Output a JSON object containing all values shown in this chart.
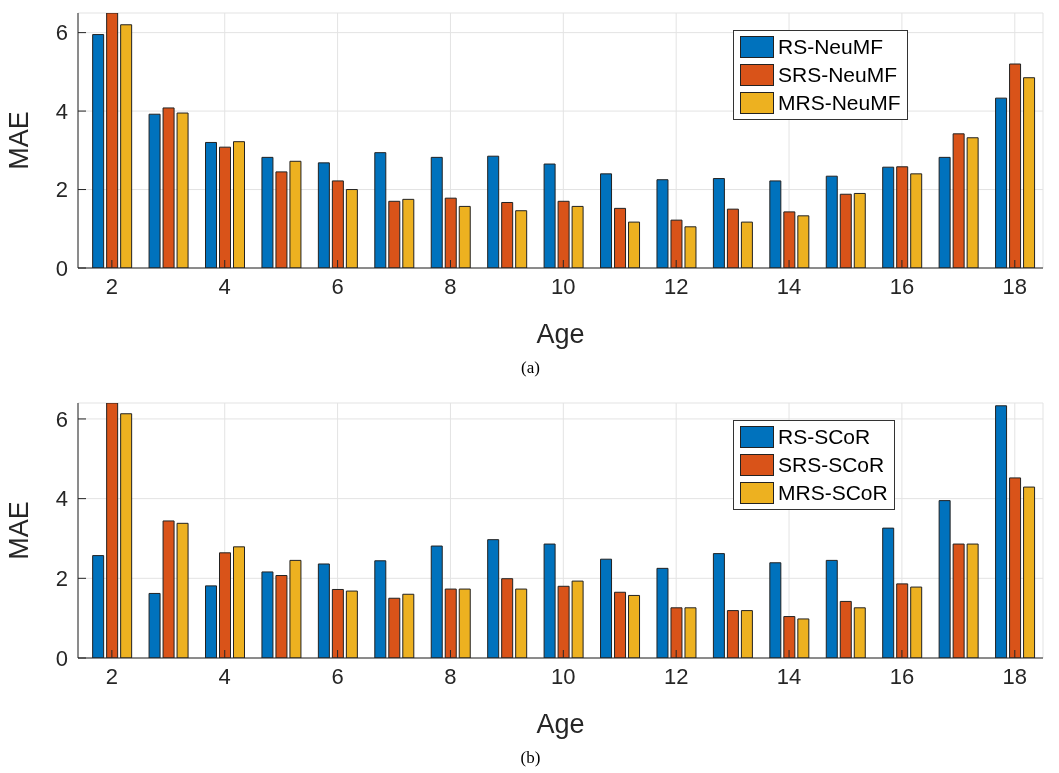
{
  "chart_data": [
    {
      "type": "bar",
      "xlabel": "Age",
      "ylabel": "MAE",
      "x": [
        2,
        3,
        4,
        5,
        6,
        7,
        8,
        9,
        10,
        11,
        12,
        13,
        14,
        15,
        16,
        17,
        18
      ],
      "xlim": [
        1.4,
        18.5
      ],
      "xticks": [
        2,
        4,
        6,
        8,
        10,
        12,
        14,
        16,
        18
      ],
      "ylim": [
        0,
        6.5
      ],
      "yticks": [
        0,
        2,
        4,
        6
      ],
      "grid": true,
      "legend": "top right",
      "annotations": [
        "(a)"
      ],
      "series": [
        {
          "name": "RS-NeuMF",
          "color": "#0072bd",
          "values": [
            5.95,
            3.92,
            3.2,
            2.82,
            2.68,
            2.94,
            2.82,
            2.85,
            2.65,
            2.4,
            2.25,
            2.28,
            2.22,
            2.34,
            2.57,
            2.82,
            4.33
          ]
        },
        {
          "name": "SRS-NeuMF",
          "color": "#d95319",
          "values": [
            6.5,
            4.08,
            3.08,
            2.45,
            2.22,
            1.7,
            1.78,
            1.67,
            1.7,
            1.52,
            1.22,
            1.5,
            1.43,
            1.88,
            2.58,
            3.42,
            5.2
          ]
        },
        {
          "name": "MRS-NeuMF",
          "color": "#edb120",
          "values": [
            6.2,
            3.95,
            3.22,
            2.72,
            2.0,
            1.75,
            1.57,
            1.46,
            1.57,
            1.17,
            1.05,
            1.17,
            1.33,
            1.9,
            2.4,
            3.32,
            4.85
          ]
        }
      ]
    },
    {
      "type": "bar",
      "xlabel": "Age",
      "ylabel": "MAE",
      "x": [
        2,
        3,
        4,
        5,
        6,
        7,
        8,
        9,
        10,
        11,
        12,
        13,
        14,
        15,
        16,
        17,
        18
      ],
      "xlim": [
        1.4,
        18.5
      ],
      "xticks": [
        2,
        4,
        6,
        8,
        10,
        12,
        14,
        16,
        18
      ],
      "ylim": [
        0,
        6.4
      ],
      "yticks": [
        0,
        2,
        4,
        6
      ],
      "grid": true,
      "legend": "top right",
      "annotations": [
        "(b)"
      ],
      "series": [
        {
          "name": "RS-SCoR",
          "color": "#0072bd",
          "values": [
            2.57,
            1.62,
            1.81,
            2.16,
            2.36,
            2.44,
            2.81,
            2.97,
            2.86,
            2.48,
            2.25,
            2.62,
            2.39,
            2.45,
            3.26,
            3.95,
            6.33
          ]
        },
        {
          "name": "SRS-SCoR",
          "color": "#d95319",
          "values": [
            6.4,
            3.44,
            2.64,
            2.07,
            1.72,
            1.5,
            1.73,
            1.99,
            1.8,
            1.65,
            1.26,
            1.19,
            1.04,
            1.42,
            1.86,
            2.86,
            4.52
          ]
        },
        {
          "name": "MRS-SCoR",
          "color": "#edb120",
          "values": [
            6.13,
            3.38,
            2.79,
            2.45,
            1.68,
            1.6,
            1.73,
            1.73,
            1.93,
            1.57,
            1.26,
            1.19,
            0.98,
            1.26,
            1.78,
            2.86,
            4.29
          ]
        }
      ]
    }
  ]
}
